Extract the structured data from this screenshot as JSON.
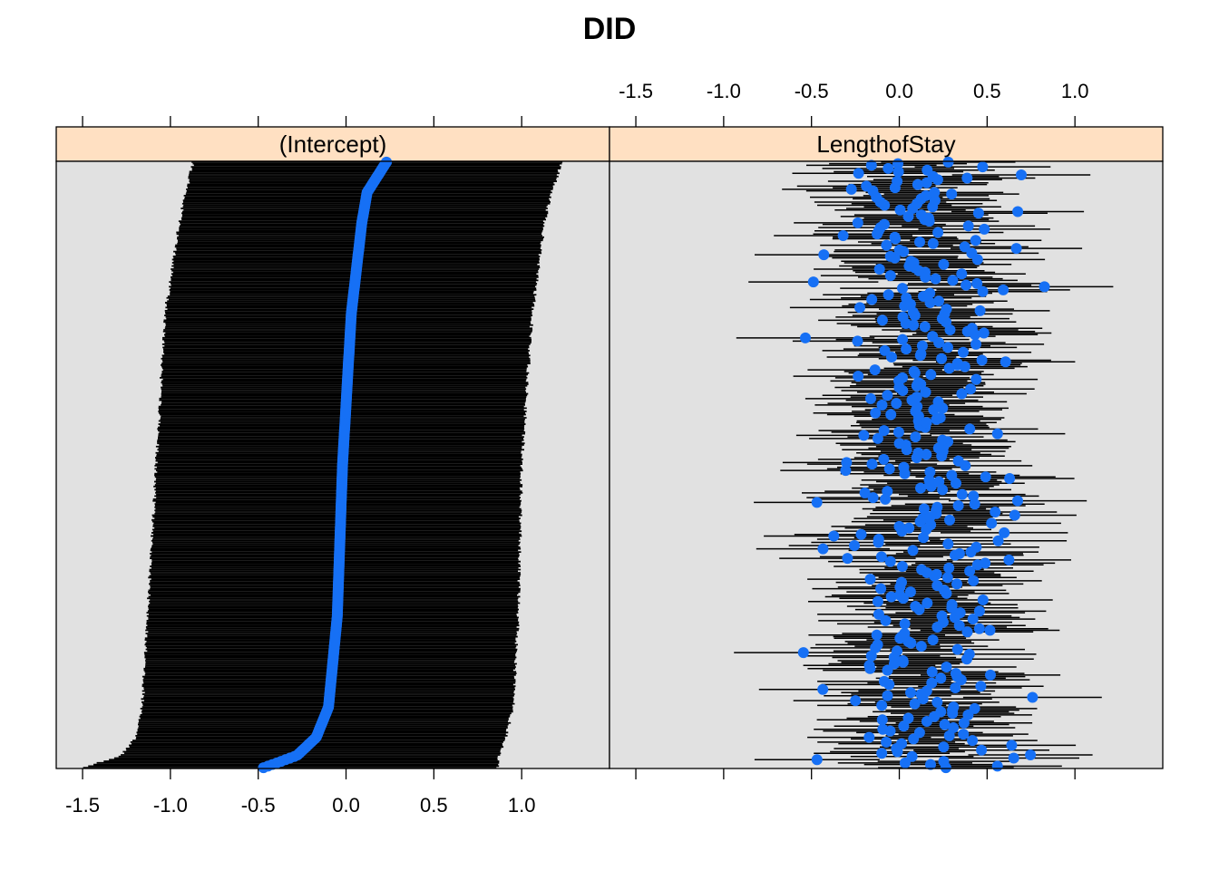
{
  "figure": {
    "title": "DID"
  },
  "colors": {
    "panel_background": "#e1e1e1",
    "strip_background": "#ffe0c2",
    "point": "#1670f5",
    "interval": "#000000",
    "frame": "#000000",
    "page": "#ffffff"
  },
  "chart_data": [
    {
      "type": "scatter",
      "subtype": "dotplot-with-intervals",
      "panel": "(Intercept)",
      "n_groups": 380,
      "xlim": [
        -1.65,
        1.5
      ],
      "x_ticks": [
        -1.5,
        -1.0,
        -0.5,
        0.0,
        0.5,
        1.0
      ],
      "x_tick_labels": [
        "-1.5",
        "-1.0",
        "-0.5",
        "0.0",
        "0.5",
        "1.0"
      ],
      "x_axis_labels_side": "bottom",
      "sorted_by_estimate": true,
      "estimate_quantile_anchors": [
        {
          "q": 0.0,
          "est": -0.47,
          "lo": -1.5,
          "hi": 0.86
        },
        {
          "q": 0.02,
          "est": -0.28,
          "lo": -1.28,
          "hi": 0.87
        },
        {
          "q": 0.05,
          "est": -0.17,
          "lo": -1.2,
          "hi": 0.91
        },
        {
          "q": 0.1,
          "est": -0.1,
          "lo": -1.16,
          "hi": 0.95
        },
        {
          "q": 0.25,
          "est": -0.05,
          "lo": -1.13,
          "hi": 0.98
        },
        {
          "q": 0.5,
          "est": -0.02,
          "lo": -1.08,
          "hi": 1.0
        },
        {
          "q": 0.75,
          "est": 0.03,
          "lo": -1.03,
          "hi": 1.06
        },
        {
          "q": 0.9,
          "est": 0.09,
          "lo": -0.95,
          "hi": 1.13
        },
        {
          "q": 0.95,
          "est": 0.12,
          "lo": -0.91,
          "hi": 1.17
        },
        {
          "q": 1.0,
          "est": 0.23,
          "lo": -0.87,
          "hi": 1.23
        }
      ],
      "grid": false,
      "legend": "none"
    },
    {
      "type": "scatter",
      "subtype": "dotplot-with-intervals",
      "panel": "LengthofStay",
      "n_groups": 380,
      "xlim": [
        -1.65,
        1.5
      ],
      "x_ticks": [
        -1.5,
        -1.0,
        -0.5,
        0.0,
        0.5,
        1.0
      ],
      "x_tick_labels": [
        "-1.5",
        "-1.0",
        "-0.5",
        "0.0",
        "0.5",
        "1.0"
      ],
      "x_axis_labels_side": "top",
      "estimate_range": [
        -0.6,
        0.9
      ],
      "estimate_center": 0.12,
      "estimate_spread_sd": 0.23,
      "interval_half_width_range": [
        0.35,
        0.4
      ],
      "grid": false,
      "legend": "none"
    }
  ]
}
